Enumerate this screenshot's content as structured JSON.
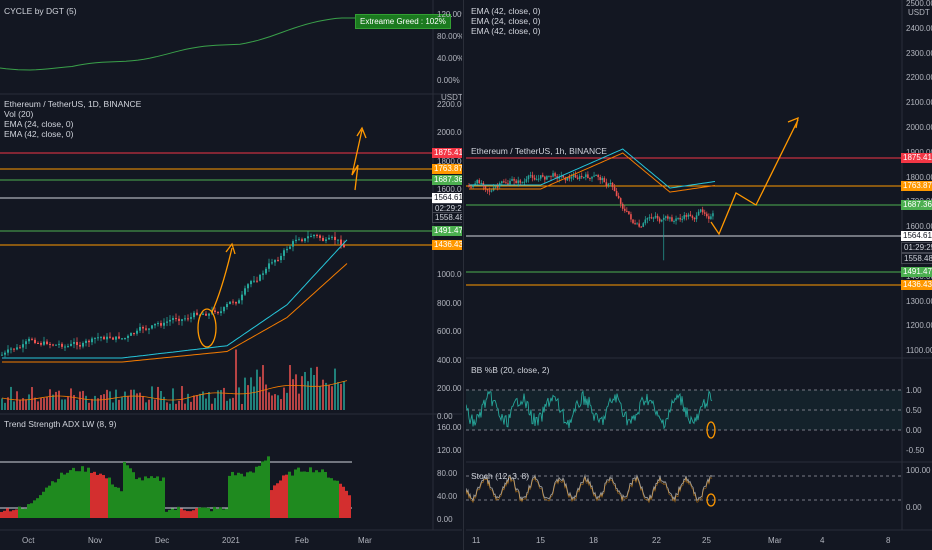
{
  "colors": {
    "background": "#131722",
    "up": "#26a69a",
    "down": "#ef5350",
    "ema24": "#26c6da",
    "ema42": "#f57c00",
    "annotation": "#ff9800",
    "red_level": "#f23645",
    "orange_level": "#ff9800",
    "green_level": "#4caf50",
    "white_level": "#d1d4dc"
  },
  "left": {
    "cycle": {
      "title": "CYCLE by DGT (5)",
      "badge": "Extreame Greed : 102%",
      "axis": [
        "120.00%",
        "80.00%",
        "40.00%",
        "0.00%"
      ]
    },
    "price": {
      "legend": [
        "Ethereum / TetherUS, 1D, BINANCE",
        "Vol (20)",
        "EMA (24, close, 0)",
        "EMA (42, close, 0)"
      ],
      "unit": "USDT",
      "axis": [
        "2200.00",
        "2000.00",
        "1800.00",
        "1600.00",
        "1400.00",
        "1200.00",
        "1000.00",
        "800.00",
        "600.00",
        "400.00",
        "200.00",
        "0.00"
      ],
      "levels": [
        {
          "label": "1875.41",
          "color": "#f23645"
        },
        {
          "label": "1763.87",
          "color": "#ff9800"
        },
        {
          "label": "1687.36",
          "color": "#4caf50"
        },
        {
          "label": "1564.61",
          "color": "#ffffff"
        },
        {
          "label": "02:29:25",
          "color": "#131722"
        },
        {
          "label": "1558.48",
          "color": "#131722"
        },
        {
          "label": "1491.47",
          "color": "#4caf50"
        },
        {
          "label": "1436.43",
          "color": "#ff9800"
        }
      ]
    },
    "adx": {
      "title": "Trend Strength ADX LW (8, 9)",
      "axis": [
        "160.00",
        "120.00",
        "80.00",
        "40.00",
        "0.00"
      ]
    },
    "time_axis": [
      "Oct",
      "Nov",
      "Dec",
      "2021",
      "Feb",
      "Mar"
    ]
  },
  "right": {
    "price": {
      "legend": [
        "Ethereum / TetherUS, 1h, BINANCE",
        "EMA (42, close, 0)",
        "EMA (24, close, 0)",
        "EMA (42, close, 0)"
      ],
      "unit": "USDT",
      "axis": [
        "2500.00",
        "2400.00",
        "2300.00",
        "2200.00",
        "2100.00",
        "2000.00",
        "1900.00",
        "1800.00",
        "1700.00",
        "1600.00",
        "1500.00",
        "1400.00",
        "1300.00",
        "1200.00",
        "1100.00"
      ],
      "levels": [
        {
          "label": "1875.41",
          "color": "#f23645"
        },
        {
          "label": "1763.87",
          "color": "#ff9800"
        },
        {
          "label": "1687.36",
          "color": "#4caf50"
        },
        {
          "label": "1564.61",
          "color": "#ffffff"
        },
        {
          "label": "01:29:25",
          "color": "#131722"
        },
        {
          "label": "1558.48",
          "color": "#131722"
        },
        {
          "label": "1491.47",
          "color": "#4caf50"
        },
        {
          "label": "1436.43",
          "color": "#ff9800"
        }
      ]
    },
    "bb": {
      "title": "BB %B (20, close, 2)",
      "axis": [
        "1.00",
        "0.50",
        "0.00",
        "-0.50"
      ]
    },
    "stoch": {
      "title": "Stoch (12, 3, 8)",
      "axis": [
        "100.00",
        "0.00"
      ]
    },
    "time_axis": [
      "11",
      "15",
      "18",
      "22",
      "25",
      "Mar",
      "4",
      "8"
    ]
  }
}
